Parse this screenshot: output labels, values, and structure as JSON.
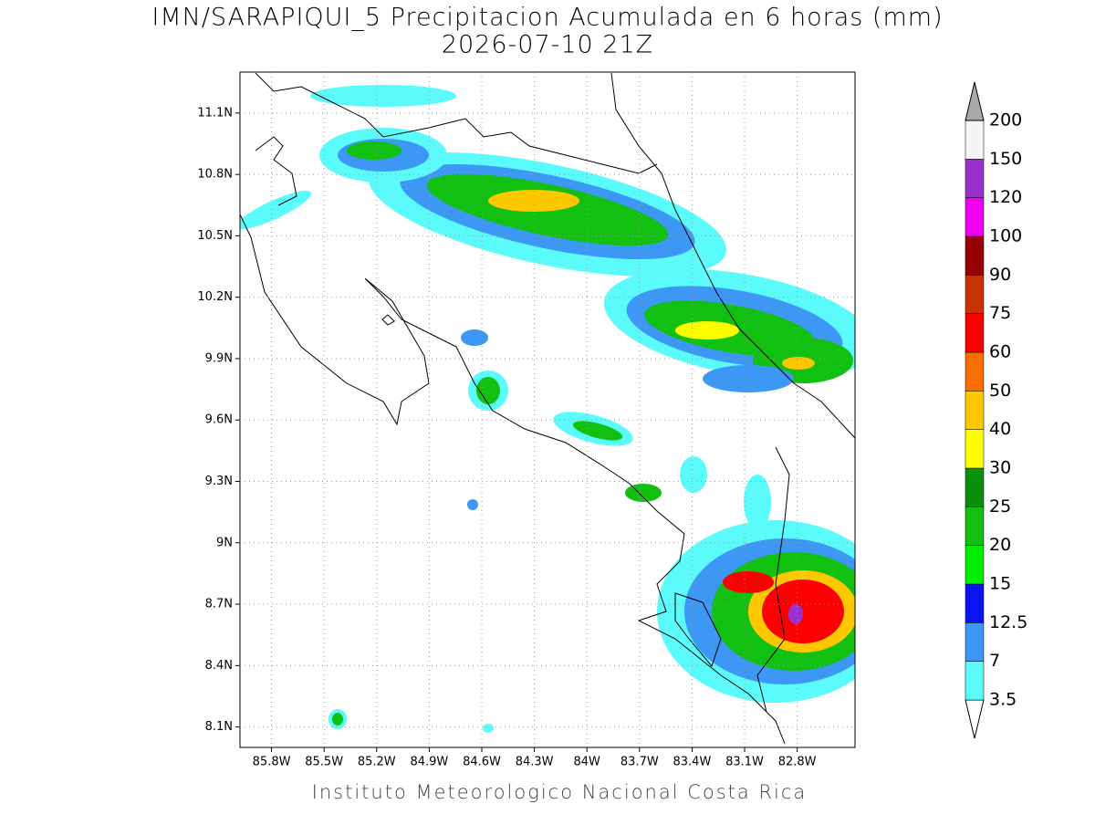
{
  "title": "IMN/SARAPIQUI_5 Precipitacion Acumulada en 6 horas (mm)",
  "subtitle": "2026-07-10 21Z",
  "map": {
    "lonlim": [
      -85.98,
      -82.47
    ],
    "latlim": [
      8.0,
      11.3
    ],
    "lon_ticks": [
      {
        "value": -85.8,
        "label": "85.8W"
      },
      {
        "value": -85.5,
        "label": "85.5W"
      },
      {
        "value": -85.2,
        "label": "85.2W"
      },
      {
        "value": -84.9,
        "label": "84.9W"
      },
      {
        "value": -84.6,
        "label": "84.6W"
      },
      {
        "value": -84.3,
        "label": "84.3W"
      },
      {
        "value": -84.0,
        "label": "84W"
      },
      {
        "value": -83.7,
        "label": "83.7W"
      },
      {
        "value": -83.4,
        "label": "83.4W"
      },
      {
        "value": -83.1,
        "label": "83.1W"
      },
      {
        "value": -82.8,
        "label": "82.8W"
      }
    ],
    "lat_ticks": [
      {
        "value": 8.1,
        "label": "8.1N"
      },
      {
        "value": 8.4,
        "label": "8.4N"
      },
      {
        "value": 8.7,
        "label": "8.7N"
      },
      {
        "value": 9.0,
        "label": "9N"
      },
      {
        "value": 9.3,
        "label": "9.3N"
      },
      {
        "value": 9.6,
        "label": "9.6N"
      },
      {
        "value": 9.9,
        "label": "9.9N"
      },
      {
        "value": 10.2,
        "label": "10.2N"
      },
      {
        "value": 10.5,
        "label": "10.5N"
      },
      {
        "value": 10.8,
        "label": "10.8N"
      },
      {
        "value": 11.1,
        "label": "11.1N"
      }
    ],
    "grid": true
  },
  "colorbar": {
    "levels": [
      3.5,
      7,
      12.5,
      15,
      20,
      25,
      30,
      40,
      50,
      60,
      75,
      90,
      100,
      120,
      150,
      200
    ],
    "colors": [
      "#ffffff",
      "#5cfbfb",
      "#3d97f5",
      "#0a14f0",
      "#00f000",
      "#12c012",
      "#0b8f0b",
      "#ffff00",
      "#fdc800",
      "#fa6e00",
      "#fa0000",
      "#c83200",
      "#960000",
      "#f000f0",
      "#9932cc",
      "#f5f5f5",
      "#a9a9a9"
    ]
  },
  "credit": "Instituto Meteorologico Nacional Costa Rica"
}
